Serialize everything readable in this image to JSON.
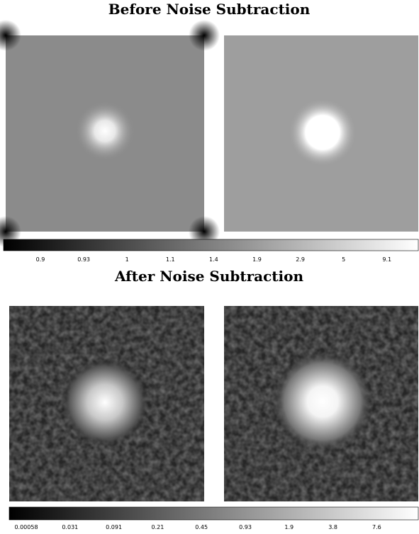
{
  "panels": [
    {
      "title": "Before Noise Subtraction",
      "colorbar_ticks": [
        "0.9",
        "0.93",
        "1",
        "1.1",
        "1.4",
        "1.9",
        "2.9",
        "5",
        "9.1"
      ]
    },
    {
      "title": "After Noise Subtraction",
      "colorbar_ticks": [
        "0.00058",
        "0.031",
        "0.091",
        "0.21",
        "0.45",
        "0.93",
        "1.9",
        "3.8",
        "7.6"
      ]
    }
  ]
}
